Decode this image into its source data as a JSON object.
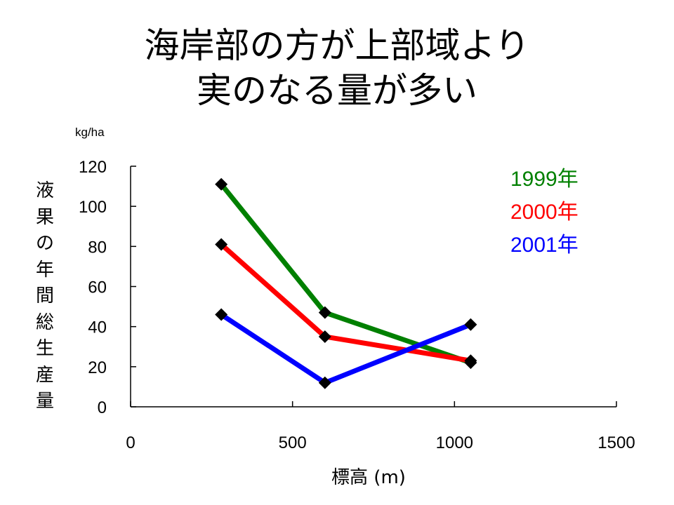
{
  "title": {
    "line1": "海岸部の方が上部域より",
    "line2": "実のなる量が多い"
  },
  "chart_data": {
    "type": "line",
    "title": "海岸部の方が上部域より実のなる量が多い",
    "xlabel": "標高 (m)",
    "ylabel": "液果の年間総生産量",
    "y_unit": "kg/ha",
    "xlim": [
      0,
      1500
    ],
    "ylim": [
      0,
      120
    ],
    "x_ticks": [
      "0",
      "500",
      "1000",
      "1500"
    ],
    "y_ticks": [
      "0",
      "20",
      "40",
      "60",
      "80",
      "100",
      "120"
    ],
    "grid": false,
    "legend_position": "top-right",
    "series": [
      {
        "name": "1999年",
        "color": "#008000",
        "x": [
          280,
          600,
          1050
        ],
        "y": [
          111,
          47,
          22
        ]
      },
      {
        "name": "2000年",
        "color": "#ff0000",
        "x": [
          280,
          600,
          1050
        ],
        "y": [
          81,
          35,
          23
        ]
      },
      {
        "name": "2001年",
        "color": "#0000ff",
        "x": [
          280,
          600,
          1050
        ],
        "y": [
          46,
          12,
          41
        ]
      }
    ]
  }
}
